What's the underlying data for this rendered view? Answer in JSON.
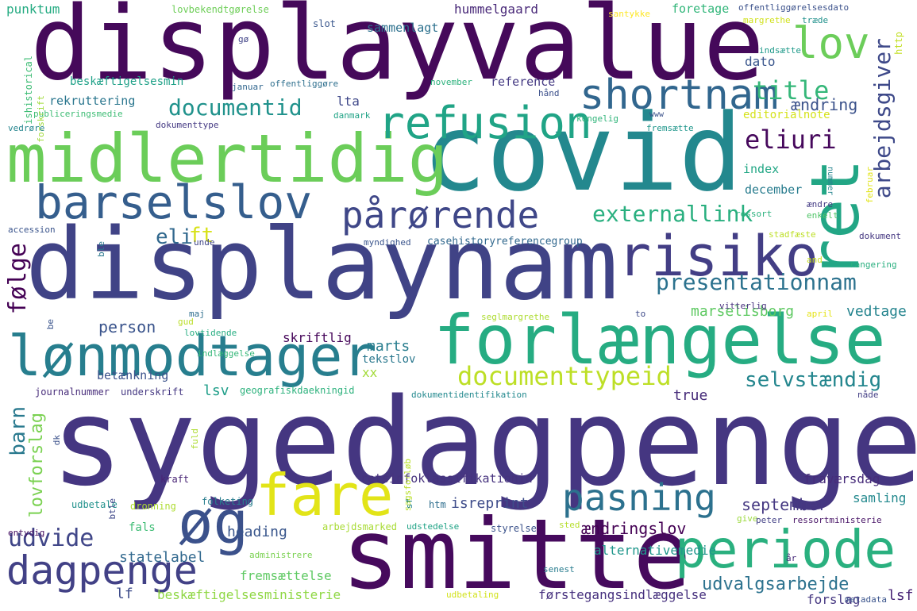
{
  "words": [
    {
      "id": "displayvalue",
      "text": "displayvalue",
      "color": "#45095a"
    },
    {
      "id": "covid",
      "text": "covid",
      "color": "#23888e"
    },
    {
      "id": "midlertidig",
      "text": "midlertidig",
      "color": "#6bcd59"
    },
    {
      "id": "ret",
      "text": "ret",
      "color": "#22a685"
    },
    {
      "id": "displaynam",
      "text": "displaynam",
      "color": "#404386"
    },
    {
      "id": "sygedagpenge",
      "text": "sygedagpenge",
      "color": "#453681"
    },
    {
      "id": "smitte",
      "text": "smitte",
      "color": "#460a5d"
    },
    {
      "id": "forlaengelse",
      "text": "forlængelse",
      "color": "#26ac82"
    },
    {
      "id": "risiko",
      "text": "risiko",
      "color": "#433e85"
    },
    {
      "id": "lonmodtager",
      "text": "lønmodtager",
      "color": "#277e8e"
    },
    {
      "id": "barselslov",
      "text": "barselslov",
      "color": "#355e8d"
    },
    {
      "id": "refusion",
      "text": "refusion",
      "color": "#20a486"
    },
    {
      "id": "lov",
      "text": "lov",
      "color": "#6ccd5a"
    },
    {
      "id": "shortnam",
      "text": "shortnam",
      "color": "#31668e"
    },
    {
      "id": "fare",
      "text": "fare",
      "color": "#e2e418"
    },
    {
      "id": "og",
      "text": "øg",
      "color": "#3b518b"
    },
    {
      "id": "periode",
      "text": "periode",
      "color": "#2ab07f"
    },
    {
      "id": "dagpenge",
      "text": "dagpenge",
      "color": "#424186"
    },
    {
      "id": "pasning",
      "text": "pasning",
      "color": "#2c718e"
    },
    {
      "id": "parorende",
      "text": "pårørende",
      "color": "#3f4788"
    },
    {
      "id": "title",
      "text": "title",
      "color": "#35b779"
    },
    {
      "id": "documentid",
      "text": "documentid",
      "color": "#20928c"
    },
    {
      "id": "eliuri",
      "text": "eliuri",
      "color": "#46085c"
    },
    {
      "id": "arbejdsgiver",
      "text": "arbejdsgiver",
      "color": "#3e4989"
    },
    {
      "id": "externallink",
      "text": "externallink",
      "color": "#29af7f"
    },
    {
      "id": "presentationnam",
      "text": "presentationnam",
      "color": "#2c728e"
    },
    {
      "id": "documenttypeid",
      "text": "documenttypeid",
      "color": "#bddf26"
    },
    {
      "id": "udvide",
      "text": "udvide",
      "color": "#404688"
    },
    {
      "id": "eli",
      "text": "eli",
      "color": "#31688e"
    },
    {
      "id": "ft",
      "text": "ft",
      "color": "#d8e219"
    },
    {
      "id": "folge",
      "text": "følge",
      "color": "#440154"
    },
    {
      "id": "barn",
      "text": "barn",
      "color": "#29798e"
    },
    {
      "id": "selvstaendig",
      "text": "selvstændig",
      "color": "#24868e"
    },
    {
      "id": "lovforslag",
      "text": "lovforslag",
      "color": "#7ad151"
    },
    {
      "id": "person",
      "text": "person",
      "color": "#3a548c"
    },
    {
      "id": "aendring",
      "text": "ændring",
      "color": "#3b528b"
    },
    {
      "id": "udvalgsarbejde",
      "text": "udvalgsarbejde",
      "color": "#2c728e"
    },
    {
      "id": "marselisborg",
      "text": "marselisborg",
      "color": "#5ec962"
    },
    {
      "id": "vedtage",
      "text": "vedtage",
      "color": "#25848e"
    },
    {
      "id": "september",
      "text": "september",
      "color": "#453882"
    },
    {
      "id": "aendringslov",
      "text": "ændringslov",
      "color": "#440154"
    },
    {
      "id": "alternativemedie",
      "text": "alternativemedie",
      "color": "#1f968b"
    },
    {
      "id": "heading",
      "text": "heading",
      "color": "#39568c"
    },
    {
      "id": "statelabel",
      "text": "statelabel",
      "color": "#31688e"
    },
    {
      "id": "fremsaettelse",
      "text": "fremsættelse",
      "color": "#5ec962"
    },
    {
      "id": "beskaeftigelsesministerie",
      "text": "beskæftigelsesministerie",
      "color": "#8fd744"
    },
    {
      "id": "forstegangsindlaeggelse",
      "text": "førstegangsindlæggelse",
      "color": "#46307e"
    },
    {
      "id": "forslag",
      "text": "forslag",
      "color": "#453781"
    },
    {
      "id": "lsf",
      "text": "lsf",
      "color": "#482475"
    },
    {
      "id": "retsinfoklassifikationid",
      "text": "retsinfoklassifikationid",
      "color": "#46327e"
    },
    {
      "id": "isreprint",
      "text": "isreprint",
      "color": "#3e4c8a"
    },
    {
      "id": "true",
      "text": "true",
      "color": "#472c7a"
    },
    {
      "id": "lsv",
      "text": "lsv",
      "color": "#1f9e89"
    },
    {
      "id": "skriftlig",
      "text": "skriftlig",
      "color": "#450559"
    },
    {
      "id": "marts",
      "text": "marts",
      "color": "#287d8e"
    },
    {
      "id": "tekstlov",
      "text": "tekstlov",
      "color": "#2a788e"
    },
    {
      "id": "xx",
      "text": "xx",
      "color": "#a2da37"
    },
    {
      "id": "betaenkning",
      "text": "betænkning",
      "color": "#3b528b"
    },
    {
      "id": "punktum",
      "text": "punktum",
      "color": "#25ab82"
    },
    {
      "id": "hummelgaard",
      "text": "hummelgaard",
      "color": "#482878"
    },
    {
      "id": "sammenlagt",
      "text": "sammenlagt",
      "color": "#2d718e"
    },
    {
      "id": "foretage",
      "text": "foretage",
      "color": "#32b67a"
    },
    {
      "id": "dato",
      "text": "dato",
      "color": "#39558c"
    },
    {
      "id": "reference",
      "text": "reference",
      "color": "#443983"
    },
    {
      "id": "lta",
      "text": "lta",
      "color": "#3f4889"
    },
    {
      "id": "rekruttering",
      "text": "rekruttering",
      "color": "#2a768e"
    },
    {
      "id": "beskaeftigelsesmin",
      "text": "beskæftigelsesmin",
      "color": "#1fa188"
    },
    {
      "id": "index",
      "text": "index",
      "color": "#22a785"
    },
    {
      "id": "december",
      "text": "december",
      "color": "#287c8e"
    },
    {
      "id": "editorialnote",
      "text": "editorialnote",
      "color": "#d5e21a"
    },
    {
      "id": "fravaersdag",
      "text": "fraværsdag",
      "color": "#472c7a"
    },
    {
      "id": "samling",
      "text": "samling",
      "color": "#23898e"
    },
    {
      "id": "lf",
      "text": "lf",
      "color": "#3e4c8a"
    },
    {
      "id": "casehistory",
      "text": "casehistoryreferencegroup",
      "color": "#31688e"
    },
    {
      "id": "indlaeggelse",
      "text": "indlæggelse",
      "color": "#35b779"
    },
    {
      "id": "geografiskdaekningid",
      "text": "geografiskdaekningid",
      "color": "#2db27d"
    },
    {
      "id": "dokumentidentifikation",
      "text": "dokumentidentifikation",
      "color": "#23898e"
    },
    {
      "id": "journalnummer",
      "text": "journalnummer",
      "color": "#472c7a"
    },
    {
      "id": "underskrift",
      "text": "underskrift",
      "color": "#453882"
    },
    {
      "id": "udbetale",
      "text": "udbetale",
      "color": "#21918c"
    },
    {
      "id": "kraft",
      "text": "kraft",
      "color": "#482475"
    },
    {
      "id": "dronning",
      "text": "dronning",
      "color": "#addc30"
    },
    {
      "id": "folketing",
      "text": "folketing",
      "color": "#287d8e"
    },
    {
      "id": "fals",
      "text": "fals",
      "color": "#3dbc74"
    },
    {
      "id": "htm",
      "text": "htm",
      "color": "#2e6e8e"
    },
    {
      "id": "arbejdsmarked",
      "text": "arbejdsmarked",
      "color": "#a8db34"
    },
    {
      "id": "udstedelse",
      "text": "udstedelse",
      "color": "#20a386"
    },
    {
      "id": "styrelse",
      "text": "styrelse",
      "color": "#3b528b"
    },
    {
      "id": "sted",
      "text": "sted",
      "color": "#b5de2b"
    },
    {
      "id": "give",
      "text": "give",
      "color": "#9bd93c"
    },
    {
      "id": "peter",
      "text": "peter",
      "color": "#424086"
    },
    {
      "id": "ressortministerie",
      "text": "ressortministerie",
      "color": "#481467"
    },
    {
      "id": "administrere",
      "text": "administrere",
      "color": "#7ad151"
    },
    {
      "id": "senest",
      "text": "senest",
      "color": "#287c8e"
    },
    {
      "id": "udbetaling",
      "text": "udbetaling",
      "color": "#d2e21b"
    },
    {
      "id": "metadata",
      "text": "metadata",
      "color": "#3a548c"
    },
    {
      "id": "lovbekendtgorelse",
      "text": "lovbekendtgørelse",
      "color": "#6ece58"
    },
    {
      "id": "slot",
      "text": "slot",
      "color": "#39568c"
    },
    {
      "id": "offentliggorelsesdato",
      "text": "offentliggørelsesdato",
      "color": "#3b518b"
    },
    {
      "id": "santykke",
      "text": "santykke",
      "color": "#fde725"
    },
    {
      "id": "margrethe",
      "text": "margrethe",
      "color": "#d0e11c"
    },
    {
      "id": "traede",
      "text": "træde",
      "color": "#21918c"
    },
    {
      "id": "indsaette",
      "text": "indsætte",
      "color": "#1f9a8a"
    },
    {
      "id": "nummer",
      "text": "nummer",
      "color": "#25848e"
    },
    {
      "id": "ressort",
      "text": "ressort",
      "color": "#2cb17e"
    },
    {
      "id": "aendre",
      "text": "ændre",
      "color": "#443b84"
    },
    {
      "id": "enkelt",
      "text": "enkelt",
      "color": "#52c569"
    },
    {
      "id": "stadfaeste",
      "text": "stadfæste",
      "color": "#bddf26"
    },
    {
      "id": "dokument",
      "text": "dokument",
      "color": "#453781"
    },
    {
      "id": "rangering",
      "text": "rangering",
      "color": "#29af7f"
    },
    {
      "id": "and",
      "text": "and",
      "color": "#c8e020"
    },
    {
      "id": "vitterlig",
      "text": "vitterlig",
      "color": "#46307e"
    },
    {
      "id": "april",
      "text": "april",
      "color": "#e5e419"
    },
    {
      "id": "to",
      "text": "to",
      "color": "#3e4a89"
    },
    {
      "id": "naade",
      "text": "nåde",
      "color": "#433e85"
    },
    {
      "id": "februar",
      "text": "februar",
      "color": "#e2e418"
    },
    {
      "id": "fremsaette",
      "text": "fremsætte",
      "color": "#1f968b"
    },
    {
      "id": "kongelig",
      "text": "kongelig",
      "color": "#31b57b"
    },
    {
      "id": "haand",
      "text": "hånd",
      "color": "#3c508b"
    },
    {
      "id": "november",
      "text": "november",
      "color": "#2db27d"
    },
    {
      "id": "dokumenttype",
      "text": "dokumenttype",
      "color": "#443983"
    },
    {
      "id": "publiceringsmedie",
      "text": "publiceringsmedie",
      "color": "#3dbc74"
    },
    {
      "id": "offentliggore",
      "text": "offentliggøre",
      "color": "#2e6f8e"
    },
    {
      "id": "januar",
      "text": "januar",
      "color": "#31668e"
    },
    {
      "id": "danmark",
      "text": "danmark",
      "color": "#20a386"
    },
    {
      "id": "go",
      "text": "gø",
      "color": "#414487"
    },
    {
      "id": "ishistorical",
      "text": "ishistorical",
      "color": "#3dbc74"
    },
    {
      "id": "forskrift",
      "text": "forskrift",
      "color": "#a0da39"
    },
    {
      "id": "vedrore",
      "text": "vedrøre",
      "color": "#25858e"
    },
    {
      "id": "accession",
      "text": "accession",
      "color": "#3a548c"
    },
    {
      "id": "unde",
      "text": "unde",
      "color": "#404688"
    },
    {
      "id": "ble",
      "text": "ble",
      "color": "#2a788e"
    },
    {
      "id": "myndighed",
      "text": "myndighed",
      "color": "#3a548c"
    },
    {
      "id": "be",
      "text": "be",
      "color": "#3a548c"
    },
    {
      "id": "gud",
      "text": "gud",
      "color": "#bade28"
    },
    {
      "id": "maj",
      "text": "maj",
      "color": "#2e6e8e"
    },
    {
      "id": "lovtidende",
      "text": "lovtidende",
      "color": "#26ad81"
    },
    {
      "id": "seglmargrethe",
      "text": "seglmargrethe",
      "color": "#addc30"
    },
    {
      "id": "www",
      "text": "www",
      "color": "#3b528b"
    },
    {
      "id": "fuld",
      "text": "fuld",
      "color": "#addc30"
    },
    {
      "id": "dk",
      "text": "dk",
      "color": "#3b518b"
    },
    {
      "id": "entydig",
      "text": "entydig",
      "color": "#471063"
    },
    {
      "id": "btle",
      "text": "btle",
      "color": "#3f4889"
    },
    {
      "id": "sagsforlob",
      "text": "sagsforløb",
      "color": "#b8de29"
    },
    {
      "id": "sf",
      "text": "sf",
      "color": "#25848e"
    },
    {
      "id": "aar",
      "text": "år",
      "color": "#472a7a"
    },
    {
      "id": "http",
      "text": "http",
      "color": "#c2df23"
    }
  ]
}
